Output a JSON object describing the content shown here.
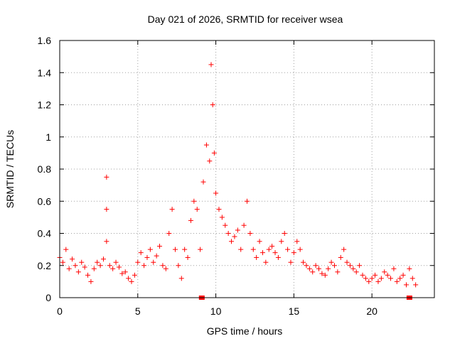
{
  "chart_data": {
    "type": "scatter",
    "title": "Day 021 of 2026, SRMTID for receiver wsea",
    "xlabel": "GPS time / hours",
    "ylabel": "SRMTID / TECUs",
    "xlim": [
      0,
      24
    ],
    "ylim": [
      0,
      1.6
    ],
    "xticks": [
      0,
      5,
      10,
      15,
      20
    ],
    "xtick_labels": [
      "0",
      "5",
      "10",
      "15",
      "20"
    ],
    "yticks": [
      0,
      0.2,
      0.4,
      0.6,
      0.8,
      1.0,
      1.2,
      1.4,
      1.6
    ],
    "ytick_labels": [
      "0",
      "0.2",
      "0.4",
      "0.6",
      "0.8",
      "1",
      "1.2",
      "1.4",
      "1.6"
    ],
    "grid": true,
    "marker": "+",
    "color": "#ff0000",
    "series": [
      {
        "name": "SRMTID",
        "x": [
          0.0,
          0.2,
          0.4,
          0.6,
          0.8,
          1.0,
          1.2,
          1.4,
          1.6,
          1.8,
          2.0,
          2.2,
          2.4,
          2.6,
          2.8,
          3.0,
          3.0,
          3.0,
          3.2,
          3.4,
          3.6,
          3.8,
          4.0,
          4.2,
          4.4,
          4.6,
          4.8,
          5.0,
          5.2,
          5.4,
          5.6,
          5.8,
          6.0,
          6.2,
          6.4,
          6.6,
          6.8,
          7.0,
          7.2,
          7.4,
          7.6,
          7.8,
          8.0,
          8.2,
          8.4,
          8.6,
          8.8,
          9.0,
          9.2,
          9.4,
          9.6,
          9.7,
          9.8,
          9.9,
          10.0,
          10.2,
          10.4,
          10.6,
          10.8,
          11.0,
          11.2,
          11.4,
          11.6,
          11.8,
          12.0,
          12.2,
          12.4,
          12.6,
          12.8,
          13.0,
          13.2,
          13.4,
          13.6,
          13.8,
          14.0,
          14.2,
          14.4,
          14.6,
          14.8,
          15.0,
          15.2,
          15.4,
          15.6,
          15.8,
          16.0,
          16.2,
          16.4,
          16.6,
          16.8,
          17.0,
          17.2,
          17.4,
          17.6,
          17.8,
          18.0,
          18.2,
          18.4,
          18.6,
          18.8,
          19.0,
          19.2,
          19.4,
          19.6,
          19.8,
          20.0,
          20.2,
          20.4,
          20.6,
          20.8,
          21.0,
          21.2,
          21.4,
          21.6,
          21.8,
          22.0,
          22.2,
          22.4,
          22.6,
          22.8
        ],
        "y": [
          0.25,
          0.22,
          0.3,
          0.18,
          0.24,
          0.2,
          0.16,
          0.22,
          0.19,
          0.14,
          0.1,
          0.18,
          0.22,
          0.2,
          0.24,
          0.75,
          0.55,
          0.35,
          0.2,
          0.18,
          0.22,
          0.19,
          0.15,
          0.16,
          0.12,
          0.1,
          0.14,
          0.22,
          0.28,
          0.2,
          0.25,
          0.3,
          0.22,
          0.26,
          0.32,
          0.2,
          0.18,
          0.4,
          0.55,
          0.3,
          0.2,
          0.12,
          0.3,
          0.25,
          0.48,
          0.6,
          0.55,
          0.3,
          0.72,
          0.95,
          0.85,
          1.45,
          1.2,
          0.9,
          0.65,
          0.55,
          0.5,
          0.45,
          0.4,
          0.35,
          0.38,
          0.42,
          0.3,
          0.45,
          0.6,
          0.4,
          0.3,
          0.25,
          0.35,
          0.28,
          0.22,
          0.3,
          0.32,
          0.28,
          0.25,
          0.35,
          0.4,
          0.3,
          0.22,
          0.28,
          0.35,
          0.3,
          0.22,
          0.2,
          0.18,
          0.16,
          0.2,
          0.18,
          0.15,
          0.14,
          0.18,
          0.22,
          0.2,
          0.16,
          0.25,
          0.3,
          0.22,
          0.2,
          0.18,
          0.16,
          0.2,
          0.14,
          0.12,
          0.1,
          0.12,
          0.14,
          0.1,
          0.12,
          0.16,
          0.14,
          0.12,
          0.18,
          0.1,
          0.12,
          0.14,
          0.08,
          0.18,
          0.12,
          0.08
        ]
      }
    ],
    "annotations": [
      {
        "type": "marker",
        "shape": "square",
        "x": 9.1,
        "y": 0.0
      },
      {
        "type": "marker",
        "shape": "square",
        "x": 22.4,
        "y": 0.0
      }
    ]
  }
}
